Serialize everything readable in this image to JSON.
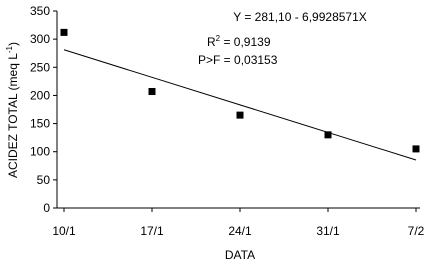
{
  "chart_data": {
    "type": "scatter",
    "xlabel": "DATA",
    "ylabel": {
      "text": "ACIDEZ TOTAL (meq L",
      "sup": "-1",
      "end": ")"
    },
    "categories": [
      "10/1",
      "17/1",
      "24/1",
      "31/1",
      "7/2"
    ],
    "series": [
      {
        "color": "#000000",
        "values": [
          312,
          207,
          165,
          130,
          105
        ]
      }
    ],
    "trend": {
      "color": "#000000",
      "values": [
        281.1,
        232.15,
        183.2,
        134.25,
        85.3
      ]
    },
    "annotations": [
      {
        "text": "Y = 281,10 - 6,9928571X"
      },
      {
        "text": "R",
        "sup": "2",
        "end": " = 0,9139"
      },
      {
        "text": "P>F = 0,03153"
      }
    ],
    "ylim": [
      0,
      350
    ],
    "yticks": [
      0,
      50,
      100,
      150,
      200,
      250,
      300,
      350
    ]
  }
}
